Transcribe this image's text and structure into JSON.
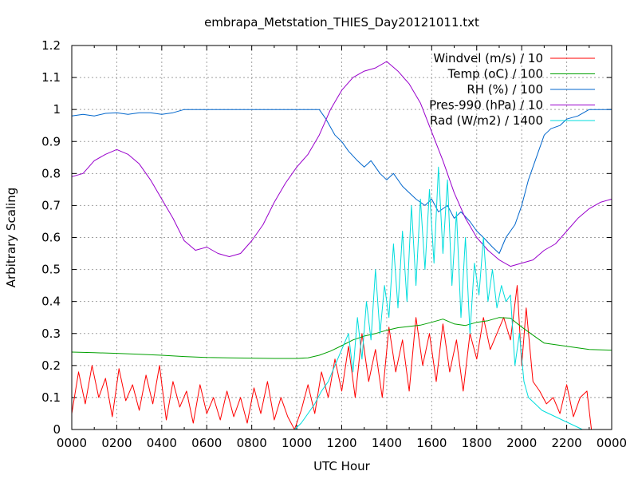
{
  "chart_data": {
    "type": "line",
    "title": "embrapa_Metstation_THIES_Day20121011.txt",
    "xlabel": "UTC Hour",
    "ylabel": "Arbitrary Scaling",
    "xlim": [
      0,
      24
    ],
    "ylim": [
      0,
      1.2
    ],
    "grid": true,
    "legend_position": "top-right",
    "xticks": [
      {
        "value": 0,
        "label": "0000"
      },
      {
        "value": 2,
        "label": "0200"
      },
      {
        "value": 4,
        "label": "0400"
      },
      {
        "value": 6,
        "label": "0600"
      },
      {
        "value": 8,
        "label": "0800"
      },
      {
        "value": 10,
        "label": "1000"
      },
      {
        "value": 12,
        "label": "1200"
      },
      {
        "value": 14,
        "label": "1400"
      },
      {
        "value": 16,
        "label": "1600"
      },
      {
        "value": 18,
        "label": "1800"
      },
      {
        "value": 20,
        "label": "2000"
      },
      {
        "value": 22,
        "label": "2200"
      },
      {
        "value": 24,
        "label": "0000"
      }
    ],
    "yticks": [
      {
        "value": 0,
        "label": "0"
      },
      {
        "value": 0.1,
        "label": "0.1"
      },
      {
        "value": 0.2,
        "label": "0.2"
      },
      {
        "value": 0.3,
        "label": "0.3"
      },
      {
        "value": 0.4,
        "label": "0.4"
      },
      {
        "value": 0.5,
        "label": "0.5"
      },
      {
        "value": 0.6,
        "label": "0.6"
      },
      {
        "value": 0.7,
        "label": "0.7"
      },
      {
        "value": 0.8,
        "label": "0.8"
      },
      {
        "value": 0.9,
        "label": "0.9"
      },
      {
        "value": 1.0,
        "label": "1"
      },
      {
        "value": 1.1,
        "label": "1.1"
      },
      {
        "value": 1.2,
        "label": "1.2"
      }
    ],
    "series": [
      {
        "name": "Windvel (m/s) / 10",
        "color": "#ff0000",
        "x": [
          0,
          0.3,
          0.6,
          0.9,
          1.2,
          1.5,
          1.8,
          2.1,
          2.4,
          2.7,
          3,
          3.3,
          3.6,
          3.9,
          4.2,
          4.5,
          4.8,
          5.1,
          5.4,
          5.7,
          6,
          6.3,
          6.6,
          6.9,
          7.2,
          7.5,
          7.8,
          8.1,
          8.4,
          8.7,
          9,
          9.3,
          9.6,
          9.9,
          10.2,
          10.5,
          10.8,
          11.1,
          11.4,
          11.7,
          12,
          12.3,
          12.6,
          12.9,
          13.2,
          13.5,
          13.8,
          14.1,
          14.4,
          14.7,
          15,
          15.3,
          15.6,
          15.9,
          16.2,
          16.5,
          16.8,
          17.1,
          17.4,
          17.7,
          18,
          18.3,
          18.6,
          18.9,
          19.2,
          19.5,
          19.8,
          20,
          20.2,
          20.5,
          20.8,
          21.1,
          21.4,
          21.7,
          22,
          22.3,
          22.6,
          22.9,
          23.1
        ],
        "y": [
          0.05,
          0.18,
          0.08,
          0.2,
          0.1,
          0.16,
          0.04,
          0.19,
          0.09,
          0.14,
          0.06,
          0.17,
          0.08,
          0.2,
          0.03,
          0.15,
          0.07,
          0.12,
          0.02,
          0.14,
          0.05,
          0.1,
          0.03,
          0.12,
          0.04,
          0.1,
          0.02,
          0.13,
          0.05,
          0.15,
          0.03,
          0.1,
          0.04,
          0.0,
          0.06,
          0.14,
          0.05,
          0.18,
          0.1,
          0.22,
          0.12,
          0.26,
          0.1,
          0.3,
          0.15,
          0.25,
          0.1,
          0.32,
          0.18,
          0.28,
          0.12,
          0.35,
          0.2,
          0.3,
          0.15,
          0.33,
          0.18,
          0.28,
          0.12,
          0.3,
          0.22,
          0.35,
          0.25,
          0.3,
          0.35,
          0.28,
          0.45,
          0.2,
          0.38,
          0.15,
          0.12,
          0.08,
          0.1,
          0.05,
          0.14,
          0.04,
          0.1,
          0.12,
          0.0
        ]
      },
      {
        "name": "Temp (oC) / 100",
        "color": "#00a000",
        "x": [
          0,
          1,
          2,
          3,
          4,
          5,
          6,
          7,
          8,
          9,
          10,
          10.5,
          11,
          11.5,
          12,
          12.5,
          13,
          13.5,
          14,
          14.5,
          15,
          15.5,
          16,
          16.5,
          17,
          17.5,
          18,
          18.5,
          19,
          19.5,
          20,
          20.5,
          21,
          22,
          23,
          24
        ],
        "y": [
          0.242,
          0.24,
          0.238,
          0.235,
          0.232,
          0.228,
          0.225,
          0.224,
          0.223,
          0.222,
          0.222,
          0.224,
          0.232,
          0.245,
          0.262,
          0.28,
          0.292,
          0.3,
          0.31,
          0.318,
          0.322,
          0.326,
          0.335,
          0.345,
          0.33,
          0.325,
          0.335,
          0.34,
          0.35,
          0.348,
          0.32,
          0.295,
          0.27,
          0.26,
          0.25,
          0.248
        ]
      },
      {
        "name": "RH (%) / 100",
        "color": "#0066cc",
        "x": [
          0,
          0.5,
          1,
          1.5,
          2,
          2.5,
          3,
          3.5,
          4,
          4.5,
          5,
          6,
          7,
          8,
          9,
          10,
          11,
          11.3,
          11.7,
          12,
          12.3,
          12.7,
          13,
          13.3,
          13.7,
          14,
          14.3,
          14.7,
          15,
          15.3,
          15.7,
          16,
          16.3,
          16.7,
          17,
          17.3,
          17.7,
          18,
          18.3,
          18.7,
          19,
          19.3,
          19.7,
          20,
          20.3,
          20.7,
          21,
          21.3,
          21.7,
          22,
          22.5,
          23,
          24
        ],
        "y": [
          0.98,
          0.985,
          0.98,
          0.988,
          0.99,
          0.985,
          0.99,
          0.99,
          0.985,
          0.99,
          1,
          1,
          1,
          1,
          1,
          1,
          1,
          0.97,
          0.92,
          0.9,
          0.87,
          0.84,
          0.82,
          0.84,
          0.8,
          0.78,
          0.8,
          0.76,
          0.74,
          0.72,
          0.7,
          0.72,
          0.68,
          0.7,
          0.66,
          0.68,
          0.65,
          0.62,
          0.6,
          0.57,
          0.55,
          0.6,
          0.64,
          0.7,
          0.78,
          0.86,
          0.92,
          0.94,
          0.95,
          0.97,
          0.98,
          1,
          1
        ]
      },
      {
        "name": "Pres-990 (hPa) / 10",
        "color": "#9900cc",
        "x": [
          0,
          0.5,
          1,
          1.5,
          2,
          2.5,
          3,
          3.5,
          4,
          4.5,
          5,
          5.5,
          6,
          6.5,
          7,
          7.5,
          8,
          8.5,
          9,
          9.5,
          10,
          10.5,
          11,
          11.5,
          12,
          12.5,
          13,
          13.5,
          14,
          14.5,
          15,
          15.5,
          16,
          16.5,
          17,
          17.5,
          18,
          18.5,
          19,
          19.5,
          20,
          20.5,
          21,
          21.5,
          22,
          22.5,
          23,
          23.5,
          24
        ],
        "y": [
          0.79,
          0.8,
          0.84,
          0.86,
          0.875,
          0.86,
          0.83,
          0.78,
          0.72,
          0.66,
          0.59,
          0.56,
          0.57,
          0.55,
          0.54,
          0.55,
          0.59,
          0.64,
          0.71,
          0.77,
          0.82,
          0.86,
          0.92,
          1.0,
          1.06,
          1.1,
          1.12,
          1.13,
          1.15,
          1.12,
          1.08,
          1.02,
          0.93,
          0.84,
          0.74,
          0.66,
          0.6,
          0.56,
          0.53,
          0.51,
          0.52,
          0.53,
          0.56,
          0.58,
          0.62,
          0.66,
          0.69,
          0.71,
          0.72
        ]
      },
      {
        "name": "Rad (W/m2) / 1400",
        "color": "#00dddd",
        "x": [
          9.9,
          10.2,
          10.5,
          10.8,
          11.1,
          11.4,
          11.7,
          12,
          12.3,
          12.5,
          12.7,
          12.9,
          13.1,
          13.3,
          13.5,
          13.7,
          13.9,
          14.1,
          14.3,
          14.5,
          14.7,
          14.9,
          15.1,
          15.3,
          15.5,
          15.7,
          15.9,
          16.1,
          16.3,
          16.5,
          16.7,
          16.9,
          17.1,
          17.3,
          17.5,
          17.7,
          17.9,
          18.1,
          18.3,
          18.5,
          18.7,
          18.9,
          19.1,
          19.3,
          19.5,
          19.7,
          19.9,
          20.1,
          20.3,
          20.6,
          20.9,
          21.2,
          21.5,
          21.8,
          22.1,
          22.4,
          22.7,
          23
        ],
        "y": [
          0,
          0.02,
          0.05,
          0.08,
          0.12,
          0.15,
          0.2,
          0.25,
          0.3,
          0.18,
          0.35,
          0.22,
          0.4,
          0.28,
          0.5,
          0.3,
          0.45,
          0.35,
          0.58,
          0.38,
          0.62,
          0.4,
          0.7,
          0.45,
          0.72,
          0.5,
          0.75,
          0.52,
          0.82,
          0.55,
          0.78,
          0.45,
          0.68,
          0.35,
          0.6,
          0.3,
          0.52,
          0.42,
          0.6,
          0.4,
          0.5,
          0.38,
          0.45,
          0.4,
          0.42,
          0.2,
          0.3,
          0.15,
          0.1,
          0.08,
          0.06,
          0.05,
          0.04,
          0.03,
          0.02,
          0.01,
          0,
          0
        ]
      }
    ]
  }
}
